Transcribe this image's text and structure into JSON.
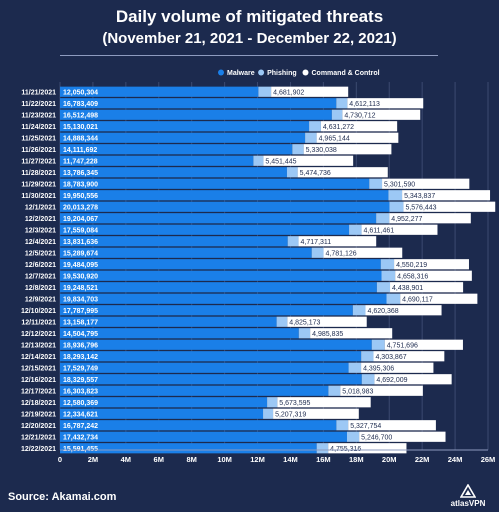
{
  "chart_data": {
    "type": "bar",
    "stacked": true,
    "orientation": "horizontal",
    "title": "Daily volume of mitigated threats",
    "subtitle": "(November 21, 2021 - December 22, 2021)",
    "categories": [
      "11/21/2021",
      "11/22/2021",
      "11/23/2021",
      "11/24/2021",
      "11/25/2021",
      "11/26/2021",
      "11/27/2021",
      "11/28/2021",
      "11/29/2021",
      "11/30/2021",
      "12/1/2021",
      "12/2/2021",
      "12/3/2021",
      "12/4/2021",
      "12/5/2021",
      "12/6/2021",
      "12/7/2021",
      "12/8/2021",
      "12/9/2021",
      "12/10/2021",
      "12/11/2021",
      "12/12/2021",
      "12/13/2021",
      "12/14/2021",
      "12/15/2021",
      "12/16/2021",
      "12/17/2021",
      "12/18/2021",
      "12/19/2021",
      "12/20/2021",
      "12/21/2021",
      "12/22/2021"
    ],
    "series": [
      {
        "name": "Malware",
        "color": "#1a7fe8",
        "values": [
          12050304,
          16783409,
          16512498,
          15130021,
          14888344,
          14111692,
          11747228,
          13786345,
          18783900,
          19950556,
          20013278,
          19204067,
          17559084,
          13831636,
          15289674,
          19484095,
          19530920,
          19248521,
          19834703,
          17787995,
          13158177,
          14504795,
          18936796,
          18293142,
          17529749,
          18329557,
          16303823,
          12580369,
          12334621,
          16787242,
          17432734,
          15591455
        ],
        "labels": [
          "12,050,304",
          "16,783,409",
          "16,512,498",
          "15,130,021",
          "14,888,344",
          "14,111,692",
          "11,747,228",
          "13,786,345",
          "18,783,900",
          "19,950,556",
          "20,013,278",
          "19,204,067",
          "17,559,084",
          "13,831,636",
          "15,289,674",
          "19,484,095",
          "19,530,920",
          "19,248,521",
          "19,834,703",
          "17,787,995",
          "13,158,177",
          "14,504,795",
          "18,936,796",
          "18,293,142",
          "17,529,749",
          "18,329,557",
          "16,303,823",
          "12,580,369",
          "12,334,621",
          "16,787,242",
          "17,432,734",
          "15,591,455"
        ]
      },
      {
        "name": "Phishing",
        "color": "#9cc8f5",
        "values": [
          775000,
          670000,
          640000,
          720000,
          700000,
          690000,
          610000,
          650000,
          780000,
          830000,
          850000,
          800000,
          760000,
          660000,
          720000,
          810000,
          830000,
          800000,
          830000,
          770000,
          650000,
          690000,
          790000,
          750000,
          760000,
          770000,
          720000,
          620000,
          610000,
          720000,
          740000,
          700000
        ]
      },
      {
        "name": "Command & Control",
        "color": "#ffffff",
        "values": [
          4681902,
          4612113,
          4730712,
          4631272,
          4965144,
          5330038,
          5451445,
          5474736,
          5301590,
          5343837,
          5576443,
          4952277,
          4611461,
          4717311,
          4781126,
          4550219,
          4658316,
          4438901,
          4690117,
          4620368,
          4825173,
          4985835,
          4751696,
          4303867,
          4395306,
          4692009,
          5018983,
          5673595,
          5207319,
          5327754,
          5246700,
          4755316
        ],
        "labels": [
          "4,681,902",
          "4,612,113",
          "4,730,712",
          "4,631,272",
          "4,965,144",
          "5,330,038",
          "5,451,445",
          "5,474,736",
          "5,301,590",
          "5,343,837",
          "5,576,443",
          "4,952,277",
          "4,611,461",
          "4,717,311",
          "4,781,126",
          "4,550,219",
          "4,658,316",
          "4,438,901",
          "4,690,117",
          "4,620,368",
          "4,825,173",
          "4,985,835",
          "4,751,696",
          "4,303,867",
          "4,395,306",
          "4,692,009",
          "5,018,983",
          "5,673,595",
          "5,207,319",
          "5,327,754",
          "5,246,700",
          "4,755,316"
        ]
      }
    ],
    "xlim": [
      0,
      26000000
    ],
    "xticks": [
      0,
      2000000,
      4000000,
      6000000,
      8000000,
      10000000,
      12000000,
      14000000,
      16000000,
      18000000,
      20000000,
      22000000,
      24000000,
      26000000
    ],
    "xtick_labels": [
      "0",
      "2M",
      "4M",
      "6M",
      "8M",
      "10M",
      "12M",
      "14M",
      "16M",
      "18M",
      "20M",
      "22M",
      "24M",
      "26M"
    ],
    "grid": true,
    "legend_position": "top-right"
  },
  "source": "Source: Akamai.com",
  "logo_text": "atlasVPN"
}
